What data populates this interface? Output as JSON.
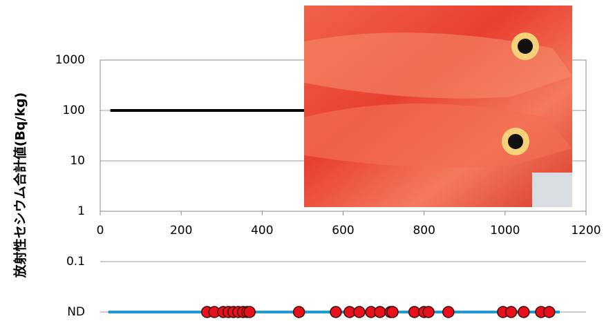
{
  "chart_data": {
    "type": "scatter",
    "y_label": "放射性セシウム合計値(Bq/kg)",
    "xlim": [
      0,
      1200
    ],
    "xticks": [
      0,
      200,
      400,
      600,
      800,
      1000,
      1200
    ],
    "ylim": [
      0.01,
      1000
    ],
    "log_y": true,
    "yticks": [
      1000,
      100,
      10,
      1,
      0.1,
      {
        "value": 0.01,
        "label": "ND"
      }
    ],
    "grid": true,
    "lines": [
      {
        "color": "#000000",
        "x": [
          25,
          1140
        ],
        "values": [
          100,
          100
        ]
      },
      {
        "color": "#1f9bd1",
        "x": [
          20,
          1135
        ],
        "values": [
          0.01,
          0.01
        ]
      }
    ],
    "series": [
      {
        "color": "#e8101a",
        "x": [
          264,
          282,
          304,
          317,
          329,
          341,
          353,
          363,
          369,
          491,
          582,
          616,
          640,
          669,
          691,
          717,
          722,
          776,
          800,
          811,
          860,
          995,
          1015,
          1046,
          1089,
          1109
        ],
        "values": [
          0.01,
          0.01,
          0.01,
          0.01,
          0.01,
          0.01,
          0.01,
          0.01,
          0.01,
          0.01,
          0.01,
          0.01,
          0.01,
          0.01,
          0.01,
          0.01,
          0.01,
          0.01,
          0.01,
          0.01,
          0.01,
          0.01,
          0.01,
          0.01,
          0.01,
          0.01
        ]
      }
    ]
  }
}
